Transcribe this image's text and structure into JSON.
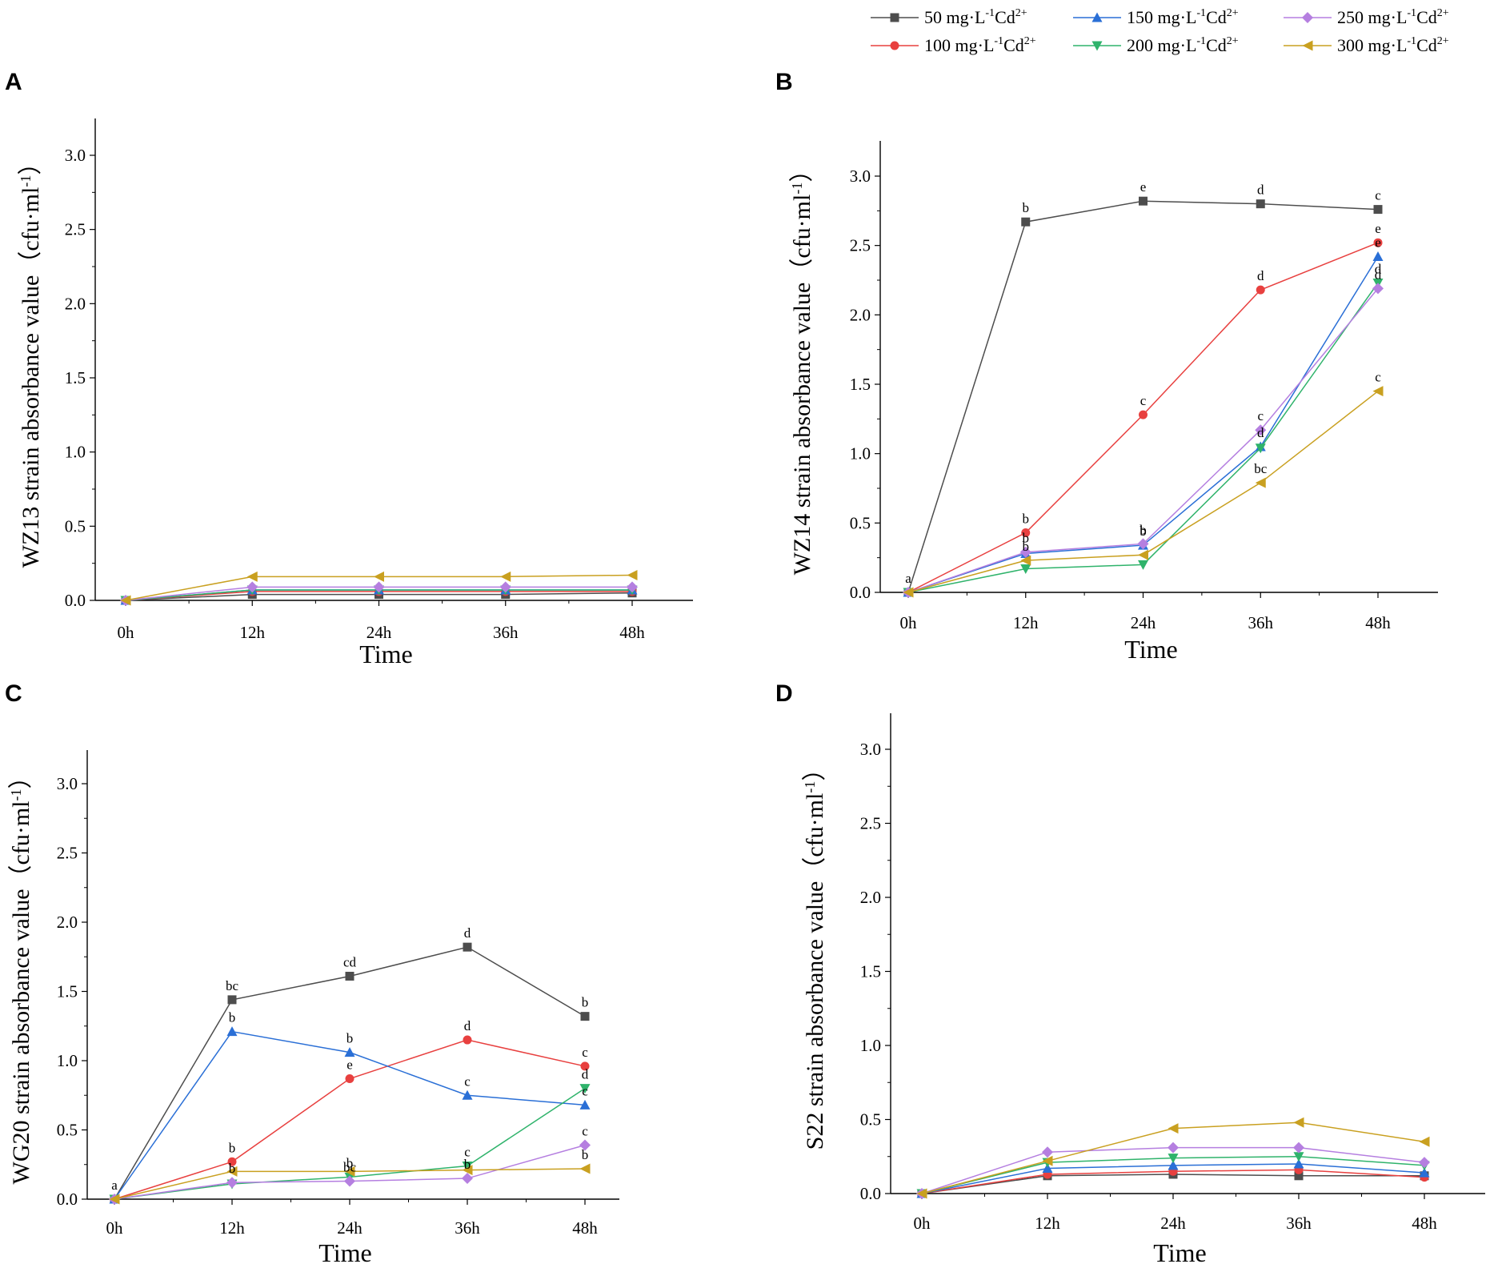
{
  "legend": {
    "series": [
      {
        "prefix": "50 mg·L",
        "sup1": "-1",
        "mid": "Cd",
        "sup2": "2+",
        "color": "#4d4d4d",
        "marker": "square"
      },
      {
        "prefix": "100 mg·L",
        "sup1": "-1",
        "mid": "Cd",
        "sup2": "2+",
        "color": "#e8403f",
        "marker": "circle"
      },
      {
        "prefix": "150 mg·L",
        "sup1": "-1",
        "mid": "Cd",
        "sup2": "2+",
        "color": "#2a6fd6",
        "marker": "triangle-up"
      },
      {
        "prefix": "200 mg·L",
        "sup1": "-1",
        "mid": "Cd",
        "sup2": "2+",
        "color": "#2fb36b",
        "marker": "triangle-down"
      },
      {
        "prefix": "250 mg·L",
        "sup1": "-1",
        "mid": "Cd",
        "sup2": "2+",
        "color": "#b57fe0",
        "marker": "diamond"
      },
      {
        "prefix": "300 mg·L",
        "sup1": "-1",
        "mid": "Cd",
        "sup2": "2+",
        "color": "#c9a020",
        "marker": "triangle-left"
      }
    ]
  },
  "chart_data": [
    {
      "panel": "A",
      "type": "line",
      "xlabel": "Time",
      "ylabel_main": "WZ13 strain absorbance value（cfu·ml",
      "ylabel_sup": "-1",
      "ylabel_end": "）",
      "categories": [
        "0h",
        "12h",
        "24h",
        "36h",
        "48h"
      ],
      "ylim": [
        0,
        3.25
      ],
      "yticks": [
        "0.0",
        "0.5",
        "1.0",
        "1.5",
        "2.0",
        "2.5",
        "3.0"
      ],
      "series": [
        {
          "name": "50 mg·L-1Cd2+",
          "values": [
            0.0,
            0.04,
            0.04,
            0.04,
            0.05
          ],
          "labels": [
            "",
            "",
            "",
            "",
            ""
          ]
        },
        {
          "name": "100 mg·L-1Cd2+",
          "values": [
            0.0,
            0.06,
            0.06,
            0.06,
            0.06
          ],
          "labels": [
            "",
            "",
            "",
            "",
            ""
          ]
        },
        {
          "name": "150 mg·L-1Cd2+",
          "values": [
            0.0,
            0.07,
            0.07,
            0.07,
            0.07
          ],
          "labels": [
            "",
            "",
            "",
            "",
            ""
          ]
        },
        {
          "name": "200 mg·L-1Cd2+",
          "values": [
            0.0,
            0.07,
            0.07,
            0.07,
            0.07
          ],
          "labels": [
            "",
            "",
            "",
            "",
            ""
          ]
        },
        {
          "name": "250 mg·L-1Cd2+",
          "values": [
            0.0,
            0.09,
            0.09,
            0.09,
            0.09
          ],
          "labels": [
            "",
            "",
            "",
            "",
            ""
          ]
        },
        {
          "name": "300 mg·L-1Cd2+",
          "values": [
            0.0,
            0.16,
            0.16,
            0.16,
            0.17
          ],
          "labels": [
            "",
            "",
            "",
            "",
            ""
          ]
        }
      ]
    },
    {
      "panel": "B",
      "type": "line",
      "xlabel": "Time",
      "ylabel_main": "WZ14 strain absorbance value（cfu·ml",
      "ylabel_sup": "-1",
      "ylabel_end": "）",
      "categories": [
        "0h",
        "12h",
        "24h",
        "36h",
        "48h"
      ],
      "ylim": [
        0,
        3.25
      ],
      "yticks": [
        "0.0",
        "0.5",
        "1.0",
        "1.5",
        "2.0",
        "2.5",
        "3.0"
      ],
      "series": [
        {
          "name": "50 mg·L-1Cd2+",
          "values": [
            0.0,
            2.67,
            2.82,
            2.8,
            2.76
          ],
          "labels": [
            "a",
            "b",
            "e",
            "d",
            "c"
          ]
        },
        {
          "name": "100 mg·L-1Cd2+",
          "values": [
            0.0,
            0.43,
            1.28,
            2.18,
            2.52
          ],
          "labels": [
            "",
            "b",
            "c",
            "d",
            "e"
          ]
        },
        {
          "name": "150 mg·L-1Cd2+",
          "values": [
            0.0,
            0.28,
            0.34,
            1.05,
            2.42
          ],
          "labels": [
            "",
            "",
            "b",
            "d",
            "e"
          ]
        },
        {
          "name": "200 mg·L-1Cd2+",
          "values": [
            0.0,
            0.17,
            0.2,
            1.04,
            2.23
          ],
          "labels": [
            "",
            "",
            "",
            "",
            "d"
          ]
        },
        {
          "name": "250 mg·L-1Cd2+",
          "values": [
            0.0,
            0.29,
            0.35,
            1.17,
            2.19
          ],
          "labels": [
            "",
            "b",
            "b",
            "c",
            "d"
          ]
        },
        {
          "name": "300 mg·L-1Cd2+",
          "values": [
            0.0,
            0.23,
            0.27,
            0.79,
            1.45
          ],
          "labels": [
            "",
            "b",
            "",
            "bc",
            "c"
          ]
        }
      ]
    },
    {
      "panel": "C",
      "type": "line",
      "xlabel": "Time",
      "ylabel_main": "WG20 strain absorbance value（cfu·ml",
      "ylabel_sup": "-1",
      "ylabel_end": "）",
      "categories": [
        "0h",
        "12h",
        "24h",
        "36h",
        "48h"
      ],
      "ylim": [
        0,
        3.25
      ],
      "yticks": [
        "0.0",
        "0.5",
        "1.0",
        "1.5",
        "2.0",
        "2.5",
        "3.0"
      ],
      "series": [
        {
          "name": "50 mg·L-1Cd2+",
          "values": [
            0.0,
            1.44,
            1.61,
            1.82,
            1.32
          ],
          "labels": [
            "a",
            "bc",
            "cd",
            "d",
            "b"
          ]
        },
        {
          "name": "100 mg·L-1Cd2+",
          "values": [
            0.0,
            0.27,
            0.87,
            1.15,
            0.96
          ],
          "labels": [
            "",
            "b",
            "e",
            "d",
            "c"
          ]
        },
        {
          "name": "150 mg·L-1Cd2+",
          "values": [
            0.0,
            1.21,
            1.06,
            0.75,
            0.68
          ],
          "labels": [
            "",
            "b",
            "b",
            "c",
            "c"
          ]
        },
        {
          "name": "200 mg·L-1Cd2+",
          "values": [
            0.0,
            0.11,
            0.16,
            0.24,
            0.8
          ],
          "labels": [
            "",
            "",
            "b",
            "c",
            "d"
          ]
        },
        {
          "name": "250 mg·L-1Cd2+",
          "values": [
            0.0,
            0.12,
            0.13,
            0.15,
            0.39
          ],
          "labels": [
            "",
            "b",
            "bc",
            "b",
            "c"
          ]
        },
        {
          "name": "300 mg·L-1Cd2+",
          "values": [
            0.0,
            0.2,
            0.2,
            0.21,
            0.22
          ],
          "labels": [
            "",
            "",
            "",
            "",
            "b"
          ]
        }
      ]
    },
    {
      "panel": "D",
      "type": "line",
      "xlabel": "Time",
      "ylabel_main": "S22 strain absorbance value（cfu·ml",
      "ylabel_sup": "-1",
      "ylabel_end": "）",
      "categories": [
        "0h",
        "12h",
        "24h",
        "36h",
        "48h"
      ],
      "ylim": [
        0,
        3.25
      ],
      "yticks": [
        "0.0",
        "0.5",
        "1.0",
        "1.5",
        "2.0",
        "2.5",
        "3.0"
      ],
      "series": [
        {
          "name": "50 mg·L-1Cd2+",
          "values": [
            0.0,
            0.12,
            0.13,
            0.12,
            0.12
          ],
          "labels": [
            "",
            "",
            "",
            "",
            ""
          ]
        },
        {
          "name": "100 mg·L-1Cd2+",
          "values": [
            0.0,
            0.13,
            0.15,
            0.16,
            0.11
          ],
          "labels": [
            "",
            "",
            "",
            "",
            ""
          ]
        },
        {
          "name": "150 mg·L-1Cd2+",
          "values": [
            0.0,
            0.17,
            0.19,
            0.2,
            0.14
          ],
          "labels": [
            "",
            "",
            "",
            "",
            ""
          ]
        },
        {
          "name": "200 mg·L-1Cd2+",
          "values": [
            0.0,
            0.21,
            0.24,
            0.25,
            0.19
          ],
          "labels": [
            "",
            "",
            "",
            "",
            ""
          ]
        },
        {
          "name": "250 mg·L-1Cd2+",
          "values": [
            0.0,
            0.28,
            0.31,
            0.31,
            0.21
          ],
          "labels": [
            "",
            "",
            "",
            "",
            ""
          ]
        },
        {
          "name": "300 mg·L-1Cd2+",
          "values": [
            0.0,
            0.22,
            0.44,
            0.48,
            0.35
          ],
          "labels": [
            "",
            "",
            "",
            "",
            ""
          ]
        }
      ]
    }
  ]
}
